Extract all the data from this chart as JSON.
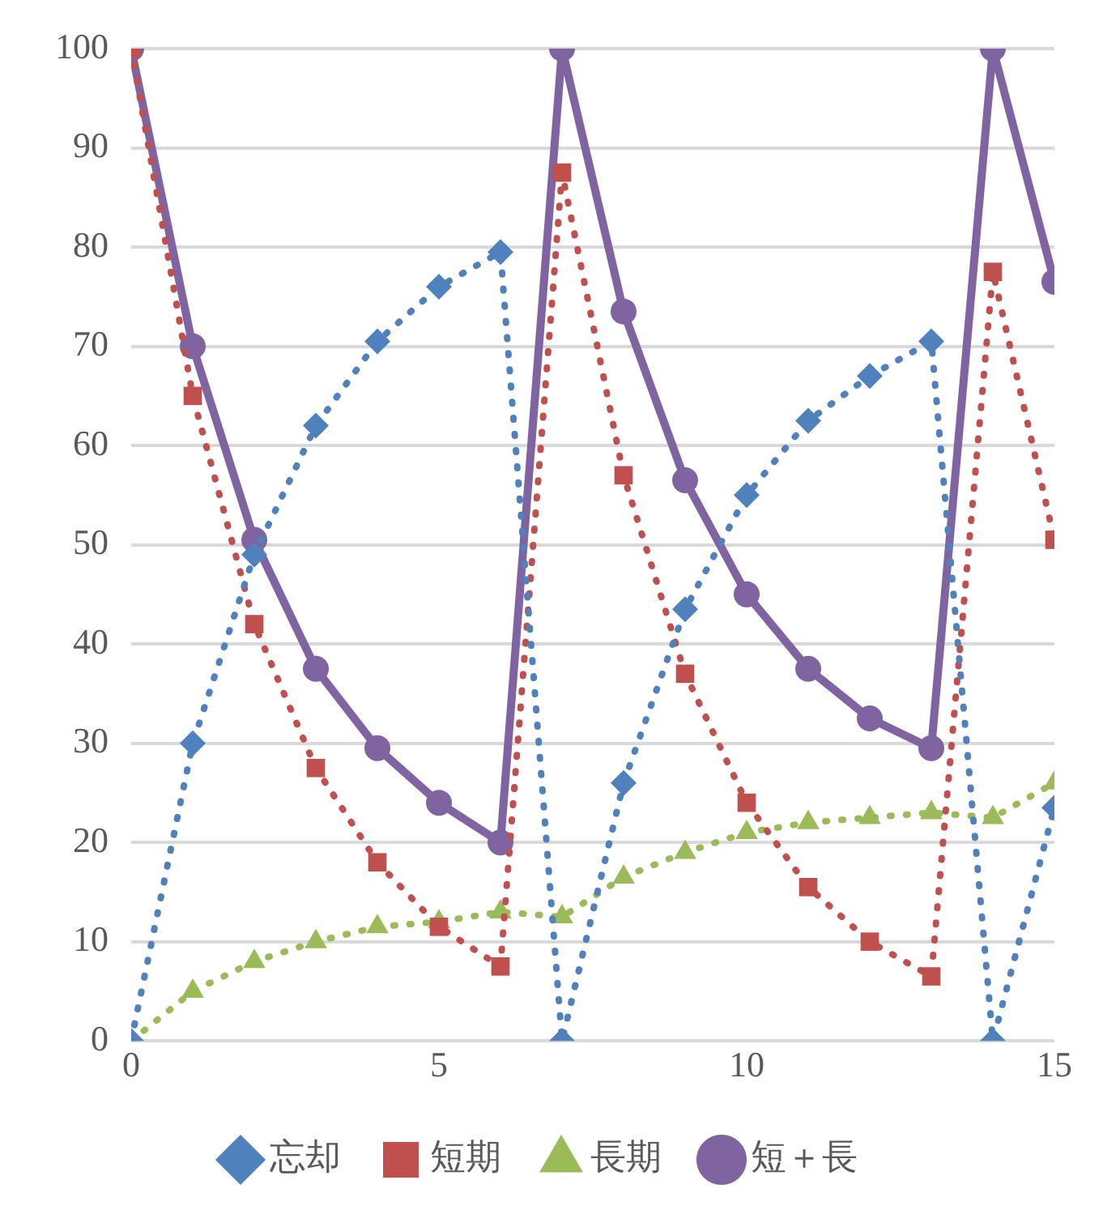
{
  "chart_data": {
    "type": "line",
    "x": [
      0,
      1,
      2,
      3,
      4,
      5,
      6,
      7,
      8,
      9,
      10,
      11,
      12,
      13,
      14,
      15
    ],
    "series": [
      {
        "name": "忘却",
        "color": "#4f81bd",
        "line_style": "dotted",
        "marker": "diamond",
        "values": [
          0,
          30,
          49,
          62,
          70.5,
          76,
          79.5,
          0,
          26,
          43.5,
          55,
          62.5,
          67,
          70.5,
          0,
          23.5
        ]
      },
      {
        "name": "短期",
        "color": "#c0504d",
        "line_style": "dotted",
        "marker": "square",
        "values": [
          100,
          65,
          42,
          27.5,
          18,
          11.5,
          7.5,
          87.5,
          57,
          37,
          24,
          15.5,
          10,
          6.5,
          77.5,
          50.5
        ]
      },
      {
        "name": "長期",
        "color": "#9bbb59",
        "line_style": "dotted",
        "marker": "triangle",
        "values": [
          0,
          5,
          8,
          10,
          11.5,
          12,
          13,
          12.5,
          16.5,
          19,
          21,
          22,
          22.5,
          23,
          22.5,
          26
        ]
      },
      {
        "name": "短＋長",
        "color": "#8064a2",
        "line_style": "solid",
        "marker": "circle",
        "values": [
          100,
          70,
          50.5,
          37.5,
          29.5,
          24,
          20,
          100,
          73.5,
          56.5,
          45,
          37.5,
          32.5,
          29.5,
          100,
          76.5
        ]
      }
    ],
    "xlim": [
      0,
      15
    ],
    "xticks": [
      0,
      5,
      10,
      15
    ],
    "ylim": [
      0,
      100
    ],
    "yticks": [
      0,
      10,
      20,
      30,
      40,
      50,
      60,
      70,
      80,
      90,
      100
    ],
    "grid": "y",
    "legend": "bottom"
  }
}
